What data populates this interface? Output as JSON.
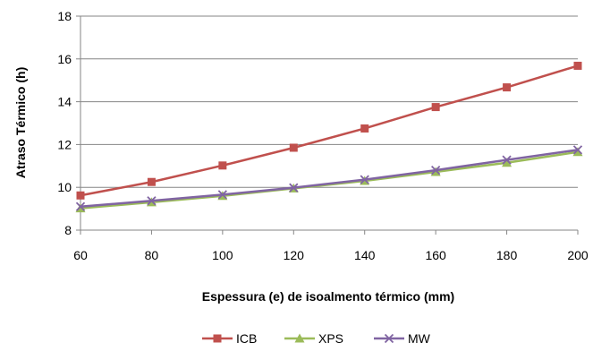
{
  "chart_data": {
    "type": "line",
    "xlabel": "Espessura (e) de isoalmento térmico (mm)",
    "ylabel": "Atraso Térmico (h)",
    "x": [
      60,
      80,
      100,
      120,
      140,
      160,
      180,
      200
    ],
    "xlim": [
      60,
      200
    ],
    "ylim": [
      8,
      18
    ],
    "xticks": [
      60,
      80,
      100,
      120,
      140,
      160,
      180,
      200
    ],
    "yticks": [
      8,
      10,
      12,
      14,
      16,
      18
    ],
    "grid": "horizontal",
    "legend": "bottom",
    "series": [
      {
        "name": "ICB",
        "color": "#C0504D",
        "marker": "square",
        "values": [
          9.62,
          10.25,
          11.02,
          11.85,
          12.75,
          13.75,
          14.67,
          15.68
        ]
      },
      {
        "name": "XPS",
        "color": "#9BBB59",
        "marker": "triangle",
        "values": [
          9.02,
          9.3,
          9.6,
          9.95,
          10.3,
          10.72,
          11.15,
          11.65
        ]
      },
      {
        "name": "MW",
        "color": "#8064A2",
        "marker": "x",
        "values": [
          9.1,
          9.37,
          9.66,
          9.98,
          10.36,
          10.8,
          11.28,
          11.75
        ]
      }
    ]
  }
}
